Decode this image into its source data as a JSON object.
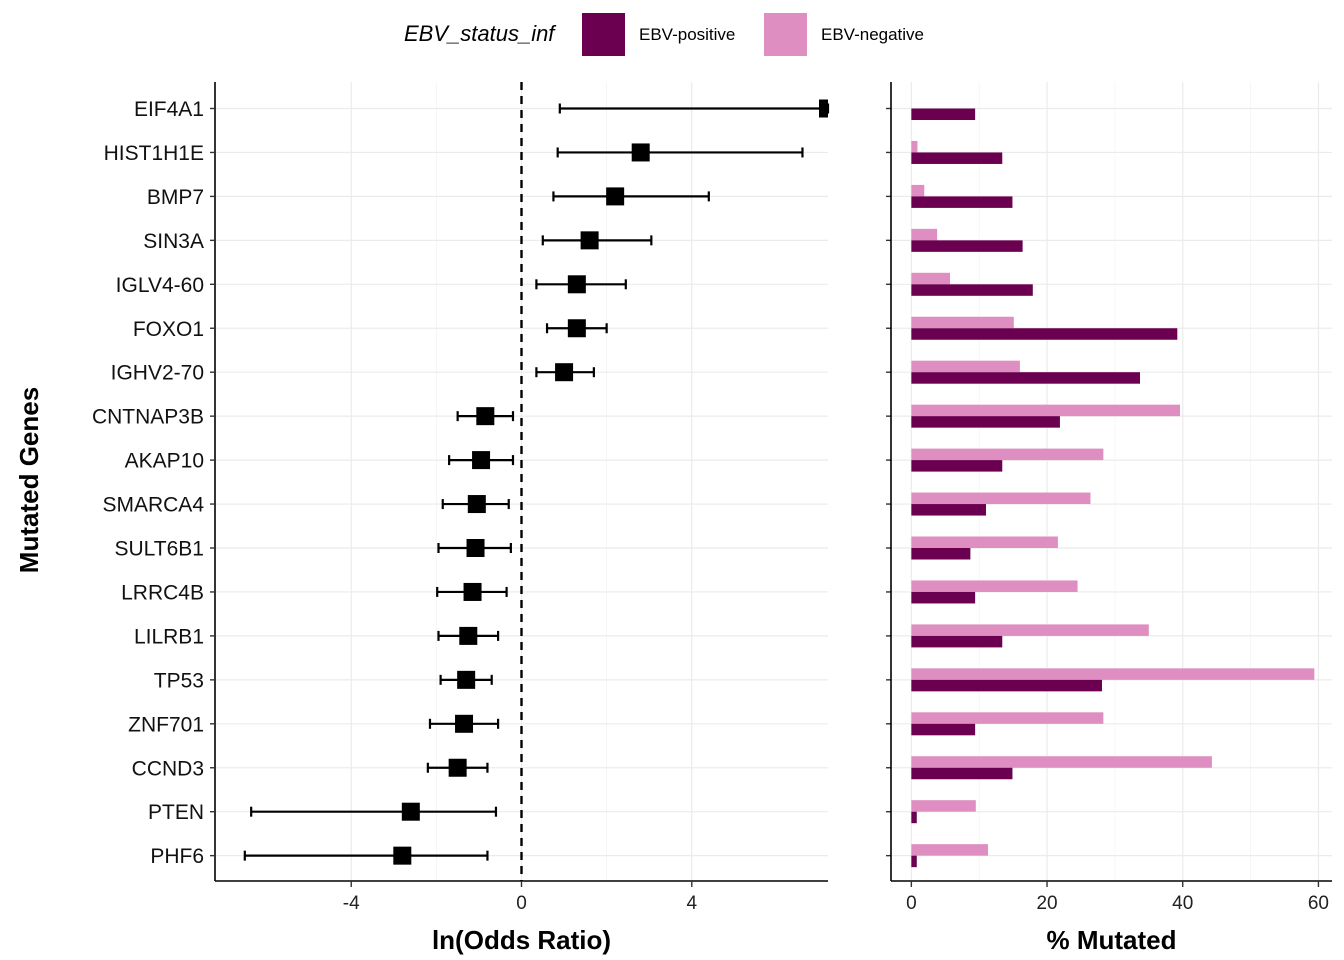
{
  "legend": {
    "title": "EBV_status_inf",
    "items": [
      {
        "label": "EBV-positive",
        "color": "#6B0050"
      },
      {
        "label": "EBV-negative",
        "color": "#DE8EC0"
      }
    ]
  },
  "y_axis_title": "Mutated Genes",
  "chart_data": [
    {
      "type": "scatter",
      "subtype": "forest-plot",
      "xlabel": "ln(Odds Ratio)",
      "ylabel": "Mutated Genes",
      "xlim": [
        -7.2,
        7.2
      ],
      "x_ticks": [
        -4,
        0,
        4
      ],
      "x_tick_labels": [
        "-4",
        "0",
        "4"
      ],
      "reference_line": 0,
      "grid": true,
      "categories": [
        "EIF4A1",
        "HIST1H1E",
        "BMP7",
        "SIN3A",
        "IGLV4-60",
        "FOXO1",
        "IGHV2-70",
        "CNTNAP3B",
        "AKAP10",
        "SMARCA4",
        "SULT6B1",
        "LRRC4B",
        "LILRB1",
        "TP53",
        "ZNF701",
        "CCND3",
        "PTEN",
        "PHF6"
      ],
      "estimate": [
        7.2,
        2.8,
        2.2,
        1.6,
        1.3,
        1.3,
        1.0,
        -0.85,
        -0.95,
        -1.05,
        -1.08,
        -1.15,
        -1.25,
        -1.3,
        -1.35,
        -1.5,
        -2.6,
        -2.8
      ],
      "ci_low": [
        0.9,
        0.85,
        0.75,
        0.5,
        0.35,
        0.6,
        0.35,
        -1.5,
        -1.7,
        -1.85,
        -1.95,
        -1.98,
        -1.95,
        -1.9,
        -2.15,
        -2.2,
        -6.35,
        -6.5
      ],
      "ci_high": [
        7.2,
        6.6,
        4.4,
        3.05,
        2.45,
        2.0,
        1.7,
        -0.2,
        -0.2,
        -0.3,
        -0.25,
        -0.35,
        -0.55,
        -0.7,
        -0.55,
        -0.8,
        -0.6,
        -0.8
      ]
    },
    {
      "type": "bar",
      "orientation": "horizontal",
      "xlabel": "% Mutated",
      "xlim": [
        -3,
        62
      ],
      "x_ticks": [
        0,
        20,
        40,
        60
      ],
      "x_tick_labels": [
        "0",
        "20",
        "40",
        "60"
      ],
      "grid": true,
      "categories": [
        "EIF4A1",
        "HIST1H1E",
        "BMP7",
        "SIN3A",
        "IGLV4-60",
        "FOXO1",
        "IGHV2-70",
        "CNTNAP3B",
        "AKAP10",
        "SMARCA4",
        "SULT6B1",
        "LRRC4B",
        "LILRB1",
        "TP53",
        "ZNF701",
        "CCND3",
        "PTEN",
        "PHF6"
      ],
      "series": [
        {
          "name": "EBV-positive",
          "color": "#6B0050",
          "values": [
            9.4,
            13.4,
            14.9,
            16.4,
            17.9,
            39.2,
            33.7,
            21.9,
            13.4,
            11.0,
            8.7,
            9.4,
            13.4,
            28.1,
            9.4,
            14.9,
            0.8,
            0.8
          ]
        },
        {
          "name": "EBV-negative",
          "color": "#DE8EC0",
          "values": [
            0,
            0.9,
            1.9,
            3.8,
            5.7,
            15.1,
            16.0,
            39.6,
            28.3,
            26.4,
            21.6,
            24.5,
            35.0,
            59.4,
            28.3,
            44.3,
            9.5,
            11.3
          ]
        }
      ]
    }
  ]
}
